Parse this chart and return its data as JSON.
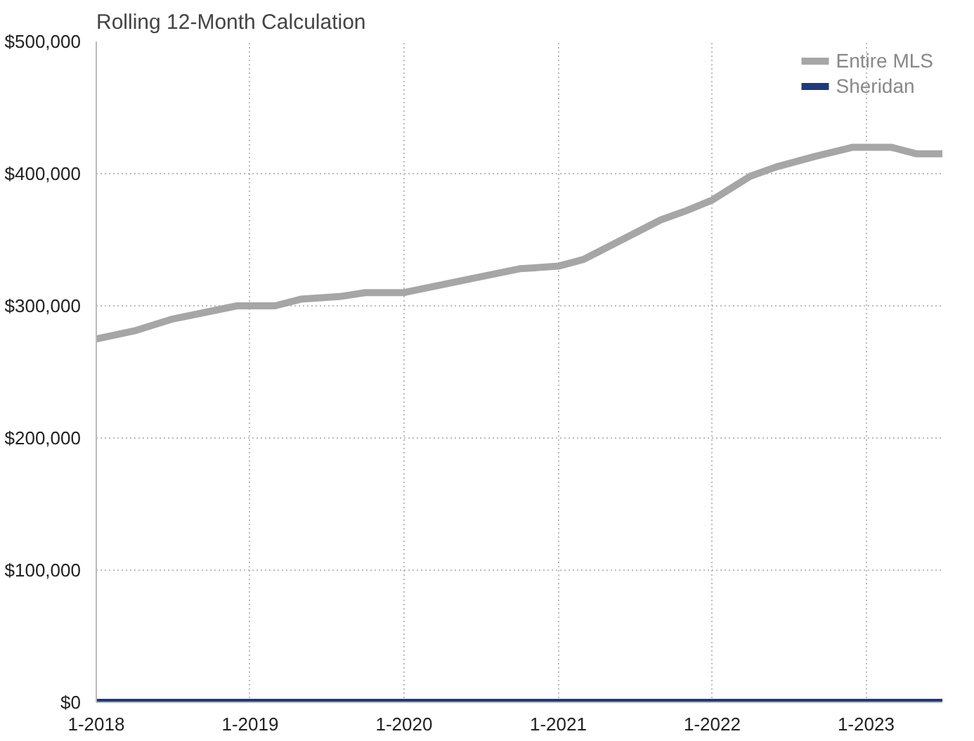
{
  "chart_data": {
    "type": "line",
    "title": "Rolling 12-Month Calculation",
    "x": [
      "2018-01",
      "2018-04",
      "2018-07",
      "2018-10",
      "2018-12",
      "2019-03",
      "2019-05",
      "2019-08",
      "2019-10",
      "2020-01",
      "2020-04",
      "2020-07",
      "2020-10",
      "2021-01",
      "2021-03",
      "2021-06",
      "2021-09",
      "2021-11",
      "2022-01",
      "2022-04",
      "2022-06",
      "2022-09",
      "2022-12",
      "2023-03",
      "2023-05",
      "2023-07"
    ],
    "series": [
      {
        "name": "Entire MLS",
        "color": "#a6a6a6",
        "values": [
          275000,
          281000,
          290000,
          296000,
          300000,
          300000,
          305000,
          307000,
          310000,
          310000,
          316000,
          322000,
          328000,
          330000,
          335000,
          350000,
          365000,
          372000,
          380000,
          398000,
          405000,
          413000,
          420000,
          420000,
          415000,
          415000
        ]
      },
      {
        "name": "Sheridan",
        "color": "#1f3a7a",
        "values": [
          0,
          0,
          0,
          0,
          0,
          0,
          0,
          0,
          0,
          0,
          0,
          0,
          0,
          0,
          0,
          0,
          0,
          0,
          0,
          0,
          0,
          0,
          0,
          0,
          0,
          0
        ]
      }
    ],
    "xlim": [
      "2018-01",
      "2023-07"
    ],
    "xticks": [
      {
        "value": "2018-01",
        "label": "1-2018"
      },
      {
        "value": "2019-01",
        "label": "1-2019"
      },
      {
        "value": "2020-01",
        "label": "1-2020"
      },
      {
        "value": "2021-01",
        "label": "1-2021"
      },
      {
        "value": "2022-01",
        "label": "1-2022"
      },
      {
        "value": "2023-01",
        "label": "1-2023"
      }
    ],
    "ylim": [
      0,
      500000
    ],
    "yticks": [
      {
        "value": 0,
        "label": "$0"
      },
      {
        "value": 100000,
        "label": "$100,000"
      },
      {
        "value": 200000,
        "label": "$200,000"
      },
      {
        "value": 300000,
        "label": "$300,000"
      },
      {
        "value": 400000,
        "label": "$400,000"
      },
      {
        "value": 500000,
        "label": "$500,000"
      }
    ],
    "grid": true,
    "legend": "top right",
    "marker": "none",
    "line_style": "solid"
  }
}
